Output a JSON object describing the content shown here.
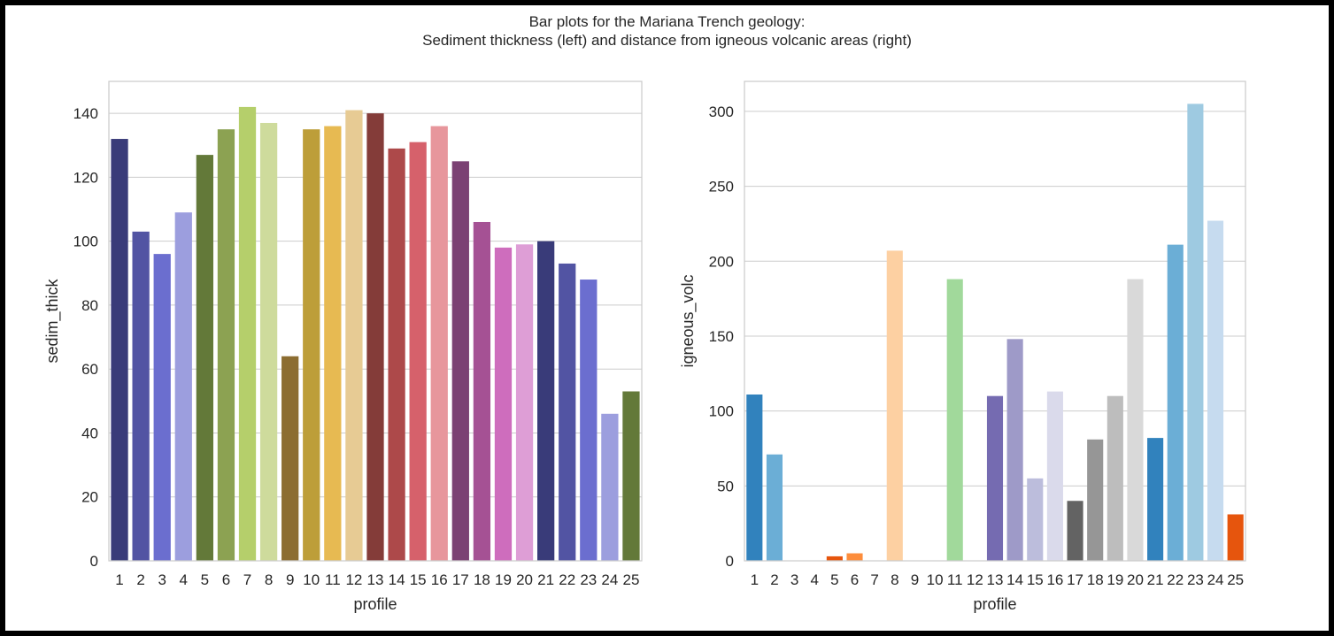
{
  "figure": {
    "title_line1": "Bar plots for the Mariana Trench geology:",
    "title_line2": "Sediment thickness (left) and distance from igneous volcanic areas (right)"
  },
  "chart_data": [
    {
      "type": "bar",
      "xlabel": "profile",
      "ylabel": "sedim_thick",
      "ylim": [
        0,
        150
      ],
      "yticks": [
        0,
        20,
        40,
        60,
        80,
        100,
        120,
        140
      ],
      "grid": true,
      "categories": [
        "1",
        "2",
        "3",
        "4",
        "5",
        "6",
        "7",
        "8",
        "9",
        "10",
        "11",
        "12",
        "13",
        "14",
        "15",
        "16",
        "17",
        "18",
        "19",
        "20",
        "21",
        "22",
        "23",
        "24",
        "25"
      ],
      "values": [
        132,
        103,
        96,
        109,
        127,
        135,
        142,
        137,
        64,
        135,
        136,
        141,
        140,
        129,
        131,
        136,
        125,
        106,
        98,
        99,
        100,
        93,
        88,
        46,
        53
      ],
      "colors": [
        "#393b79",
        "#5254a3",
        "#6b6ecf",
        "#9c9ede",
        "#637939",
        "#8ca252",
        "#b5cf6b",
        "#cedb9c",
        "#8c6d31",
        "#bd9e39",
        "#e7ba52",
        "#e7cb94",
        "#843c39",
        "#ad494a",
        "#d6616b",
        "#e7969c",
        "#7b4173",
        "#a55194",
        "#ce6dbd",
        "#de9ed6",
        "#393b79",
        "#5254a3",
        "#6b6ecf",
        "#9c9ede",
        "#637939"
      ]
    },
    {
      "type": "bar",
      "xlabel": "profile",
      "ylabel": "igneous_volc",
      "ylim": [
        0,
        320
      ],
      "yticks": [
        0,
        50,
        100,
        150,
        200,
        250,
        300
      ],
      "grid": true,
      "categories": [
        "1",
        "2",
        "3",
        "4",
        "5",
        "6",
        "7",
        "8",
        "9",
        "10",
        "11",
        "12",
        "13",
        "14",
        "15",
        "16",
        "17",
        "18",
        "19",
        "20",
        "21",
        "22",
        "23",
        "24",
        "25"
      ],
      "values": [
        111,
        71,
        0,
        0,
        3,
        5,
        0,
        207,
        0,
        0,
        188,
        0,
        110,
        148,
        55,
        113,
        40,
        81,
        110,
        188,
        82,
        211,
        305,
        227,
        31
      ],
      "colors": [
        "#3182bd",
        "#6baed6",
        "#9ecae1",
        "#c6dbef",
        "#e6550d",
        "#fd8d3c",
        "#fdae6b",
        "#fdd0a2",
        "#31a354",
        "#74c476",
        "#a1d99b",
        "#c7e9c0",
        "#756bb1",
        "#9e9ac8",
        "#bcbddc",
        "#dadaeb",
        "#636363",
        "#969696",
        "#bdbdbd",
        "#d9d9d9",
        "#3182bd",
        "#6baed6",
        "#9ecae1",
        "#c6dbef",
        "#e6550d"
      ]
    }
  ]
}
